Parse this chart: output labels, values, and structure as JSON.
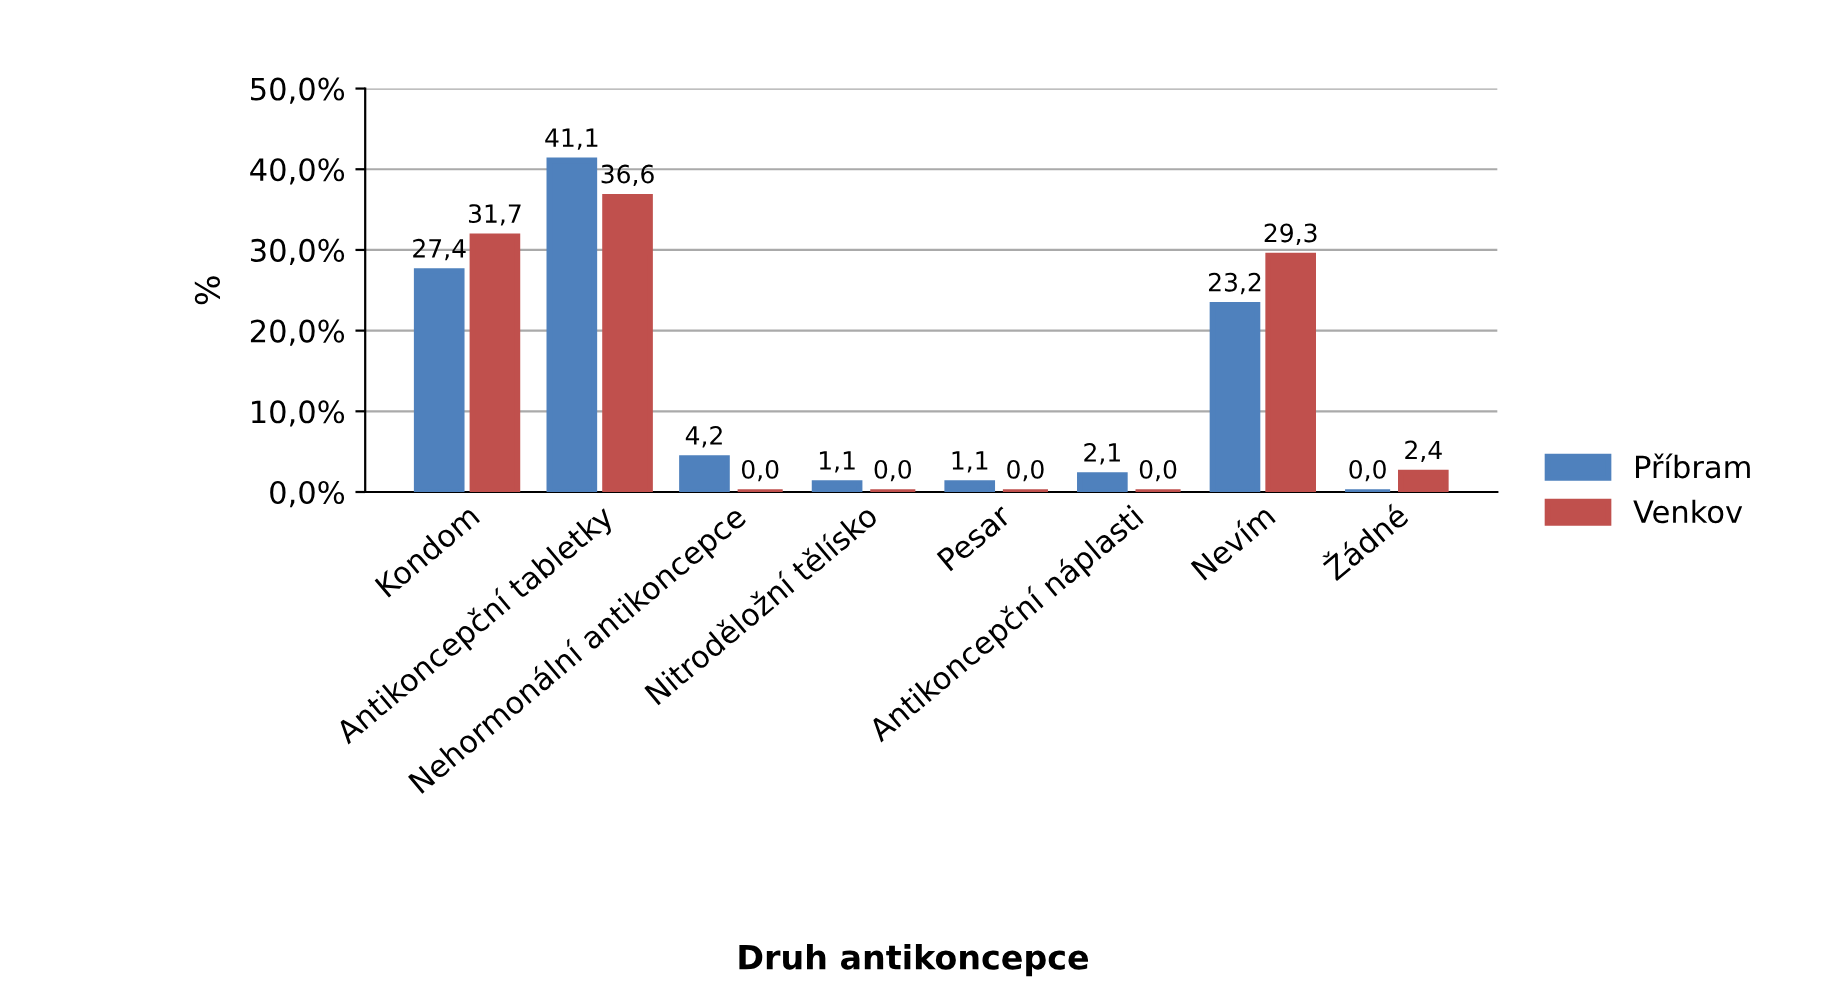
{
  "chart_data": {
    "type": "bar",
    "xlabel": "Druh antikoncepce",
    "ylabel": "%",
    "categories": [
      "Kondom",
      "Antikoncepční tabletky",
      "Nehormonální antikoncepce",
      "Nitroděložní tělísko",
      "Pesar",
      "Antikoncepční náplasti",
      "Nevím",
      "Žádné"
    ],
    "series": [
      {
        "name": "Příbram",
        "color": "#4f81bd",
        "values": [
          27.4,
          41.1,
          4.2,
          1.1,
          1.1,
          2.1,
          23.2,
          0.0
        ],
        "value_labels": [
          "27,4",
          "41,1",
          "4,2",
          "1,1",
          "1,1",
          "2,1",
          "23,2",
          "0,0"
        ]
      },
      {
        "name": "Venkov",
        "color": "#c0504d",
        "values": [
          31.7,
          36.6,
          0.0,
          0.0,
          0.0,
          0.0,
          29.3,
          2.4
        ],
        "value_labels": [
          "31,7",
          "36,6",
          "0,0",
          "0,0",
          "0,0",
          "0,0",
          "29,3",
          "2,4"
        ]
      }
    ],
    "ylim": [
      0,
      50
    ],
    "yticks": [
      {
        "value": 0,
        "label": "0,0%"
      },
      {
        "value": 10,
        "label": "10,0%"
      },
      {
        "value": 20,
        "label": "20,0%"
      },
      {
        "value": 30,
        "label": "30,0%"
      },
      {
        "value": 40,
        "label": "40,0%"
      },
      {
        "value": 50,
        "label": "50,0%"
      }
    ],
    "grid": "y",
    "legend": "right"
  }
}
